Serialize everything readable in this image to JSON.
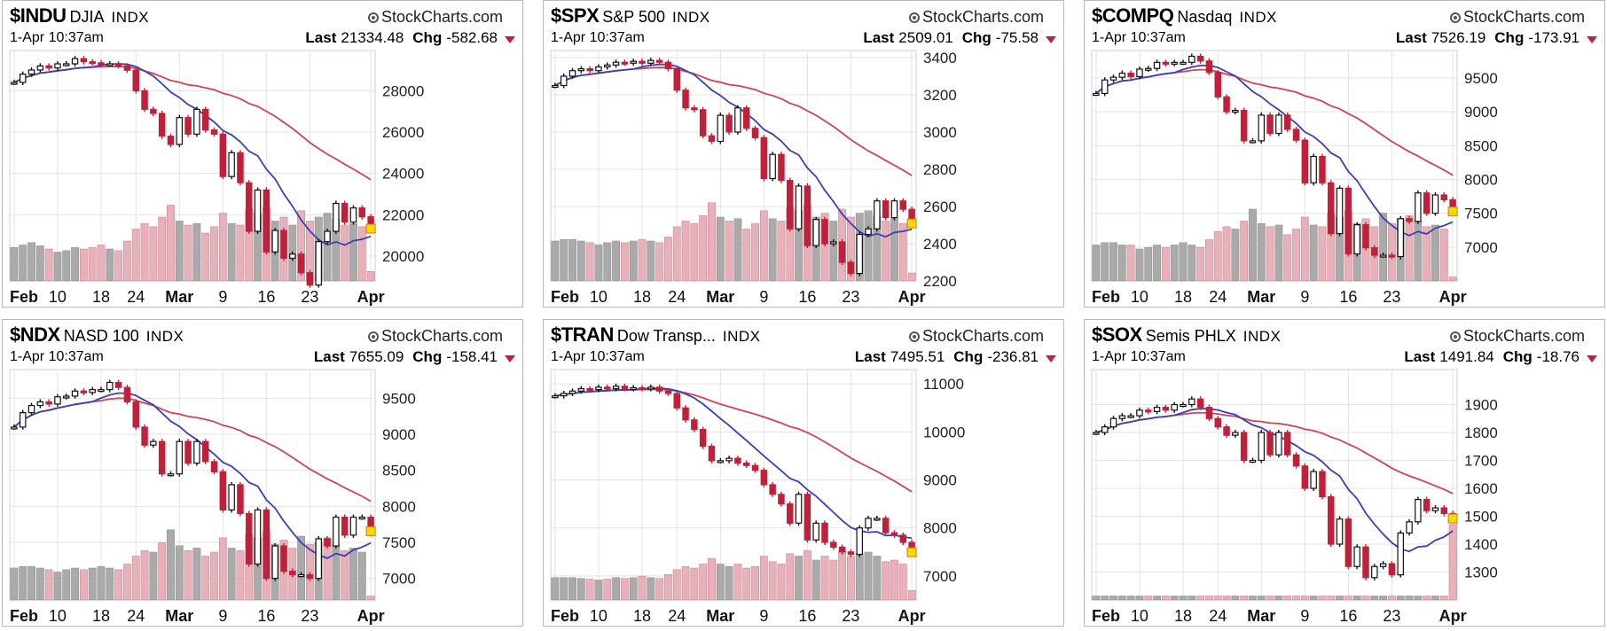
{
  "brand": "StockCharts.com",
  "colors": {
    "up_body": "#ffffff",
    "down_body": "#c0203a",
    "ma_short": "#3b3fb5",
    "ma_long": "#cc4455",
    "vol_down": "#e8b0b8",
    "vol_up": "#aaaaaa",
    "highlight": "#ffd800"
  },
  "panels": [
    {
      "ticker": "$INDU",
      "name": "DJIA",
      "index_label": "INDX",
      "datetime": "1-Apr 10:37am",
      "last_label": "Last",
      "last": "21334.48",
      "chg_label": "Chg",
      "chg": "-582.68"
    },
    {
      "ticker": "$SPX",
      "name": "S&P 500",
      "index_label": "INDX",
      "datetime": "1-Apr 10:37am",
      "last_label": "Last",
      "last": "2509.01",
      "chg_label": "Chg",
      "chg": "-75.58"
    },
    {
      "ticker": "$COMPQ",
      "name": "Nasdaq",
      "index_label": "INDX",
      "datetime": "1-Apr 10:37am",
      "last_label": "Last",
      "last": "7526.19",
      "chg_label": "Chg",
      "chg": "-173.91"
    },
    {
      "ticker": "$NDX",
      "name": "NASD 100",
      "index_label": "INDX",
      "datetime": "1-Apr 10:37am",
      "last_label": "Last",
      "last": "7655.09",
      "chg_label": "Chg",
      "chg": "-158.41"
    },
    {
      "ticker": "$TRAN",
      "name": "Dow Transp...",
      "index_label": "INDX",
      "datetime": "1-Apr 10:37am",
      "last_label": "Last",
      "last": "7495.51",
      "chg_label": "Chg",
      "chg": "-236.81"
    },
    {
      "ticker": "$SOX",
      "name": "Semis PHLX",
      "index_label": "INDX",
      "datetime": "1-Apr 10:37am",
      "last_label": "Last",
      "last": "1491.84",
      "chg_label": "Chg",
      "chg": "-18.76"
    }
  ],
  "chart_data": [
    {
      "type": "line",
      "title": "$INDU DJIA INDX",
      "ylim": [
        18800,
        29600
      ],
      "y_ticks": [
        20000,
        22000,
        24000,
        26000,
        28000
      ],
      "x_ticks": [
        "Feb",
        "10",
        "18",
        "24",
        "Mar",
        "9",
        "16",
        "23",
        "Apr"
      ],
      "x_ticks_bold": [
        "Feb",
        "Mar",
        "Apr"
      ],
      "x": [
        "Feb 3",
        "Feb 4",
        "Feb 5",
        "Feb 6",
        "Feb 7",
        "Feb 10",
        "Feb 11",
        "Feb 12",
        "Feb 13",
        "Feb 14",
        "Feb 18",
        "Feb 19",
        "Feb 20",
        "Feb 21",
        "Feb 24",
        "Feb 25",
        "Feb 26",
        "Feb 27",
        "Feb 28",
        "Mar 2",
        "Mar 3",
        "Mar 4",
        "Mar 5",
        "Mar 6",
        "Mar 9",
        "Mar 10",
        "Mar 11",
        "Mar 12",
        "Mar 13",
        "Mar 16",
        "Mar 17",
        "Mar 18",
        "Mar 19",
        "Mar 20",
        "Mar 23",
        "Mar 24",
        "Mar 25",
        "Mar 26",
        "Mar 27",
        "Mar 30",
        "Mar 31",
        "Apr 1"
      ],
      "series": [
        {
          "kind": "close",
          "values": [
            28400,
            28800,
            29000,
            29200,
            29100,
            29300,
            29300,
            29550,
            29400,
            29350,
            29300,
            29300,
            29200,
            28990,
            28000,
            27100,
            26900,
            25800,
            25400,
            26700,
            25900,
            27100,
            26100,
            25900,
            23850,
            25000,
            23550,
            21200,
            23200,
            20200,
            21240,
            19900,
            20100,
            19200,
            18600,
            20700,
            21200,
            22550,
            21650,
            22330,
            21900,
            21330
          ]
        },
        {
          "kind": "volume",
          "values": [
            0.42,
            0.45,
            0.48,
            0.44,
            0.4,
            0.36,
            0.38,
            0.42,
            0.4,
            0.42,
            0.45,
            0.4,
            0.38,
            0.5,
            0.65,
            0.72,
            0.68,
            0.8,
            0.95,
            0.75,
            0.7,
            0.72,
            0.6,
            0.68,
            0.85,
            0.72,
            0.7,
            0.9,
            0.85,
            0.92,
            0.75,
            0.8,
            0.7,
            0.88,
            0.75,
            0.8,
            0.85,
            0.78,
            0.7,
            0.72,
            0.68,
            0.12
          ]
        }
      ]
    },
    {
      "type": "line",
      "title": "$SPX S&P 500 INDX",
      "ylim": [
        2200,
        3400
      ],
      "y_ticks": [
        2200,
        2400,
        2600,
        2800,
        3000,
        3200,
        3400
      ],
      "x_ticks": [
        "Feb",
        "10",
        "18",
        "24",
        "Mar",
        "9",
        "16",
        "23",
        "Apr"
      ],
      "x_ticks_bold": [
        "Feb",
        "Mar",
        "Apr"
      ],
      "x": [
        "Feb 3",
        "Feb 4",
        "Feb 5",
        "Feb 6",
        "Feb 7",
        "Feb 10",
        "Feb 11",
        "Feb 12",
        "Feb 13",
        "Feb 14",
        "Feb 18",
        "Feb 19",
        "Feb 20",
        "Feb 21",
        "Feb 24",
        "Feb 25",
        "Feb 26",
        "Feb 27",
        "Feb 28",
        "Mar 2",
        "Mar 3",
        "Mar 4",
        "Mar 5",
        "Mar 6",
        "Mar 9",
        "Mar 10",
        "Mar 11",
        "Mar 12",
        "Mar 13",
        "Mar 16",
        "Mar 17",
        "Mar 18",
        "Mar 19",
        "Mar 20",
        "Mar 23",
        "Mar 24",
        "Mar 25",
        "Mar 26",
        "Mar 27",
        "Mar 30",
        "Mar 31",
        "Apr 1"
      ],
      "series": [
        {
          "kind": "close",
          "values": [
            3250,
            3300,
            3330,
            3340,
            3330,
            3350,
            3360,
            3375,
            3370,
            3380,
            3370,
            3385,
            3375,
            3340,
            3225,
            3130,
            3120,
            2980,
            2950,
            3090,
            3000,
            3130,
            3020,
            2970,
            2750,
            2880,
            2740,
            2480,
            2710,
            2390,
            2530,
            2400,
            2410,
            2300,
            2240,
            2450,
            2480,
            2630,
            2540,
            2630,
            2585,
            2509
          ]
        },
        {
          "kind": "volume",
          "values": [
            0.5,
            0.52,
            0.52,
            0.5,
            0.48,
            0.45,
            0.48,
            0.5,
            0.48,
            0.5,
            0.52,
            0.5,
            0.48,
            0.55,
            0.68,
            0.75,
            0.72,
            0.82,
            0.98,
            0.8,
            0.75,
            0.78,
            0.65,
            0.72,
            0.88,
            0.78,
            0.75,
            0.92,
            0.88,
            0.95,
            0.8,
            0.85,
            0.75,
            0.9,
            0.8,
            0.85,
            0.88,
            0.82,
            0.75,
            0.78,
            0.72,
            0.1
          ]
        }
      ]
    },
    {
      "type": "line",
      "title": "$COMPQ Nasdaq INDX",
      "ylim": [
        6500,
        9800
      ],
      "y_ticks": [
        7000,
        7500,
        8000,
        8500,
        9000,
        9500
      ],
      "x_ticks": [
        "Feb",
        "10",
        "18",
        "24",
        "Mar",
        "9",
        "16",
        "23",
        "Apr"
      ],
      "x_ticks_bold": [
        "Feb",
        "Mar",
        "Apr"
      ],
      "x": [
        "Feb 3",
        "Feb 4",
        "Feb 5",
        "Feb 6",
        "Feb 7",
        "Feb 10",
        "Feb 11",
        "Feb 12",
        "Feb 13",
        "Feb 14",
        "Feb 18",
        "Feb 19",
        "Feb 20",
        "Feb 21",
        "Feb 24",
        "Feb 25",
        "Feb 26",
        "Feb 27",
        "Feb 28",
        "Mar 2",
        "Mar 3",
        "Mar 4",
        "Mar 5",
        "Mar 6",
        "Mar 9",
        "Mar 10",
        "Mar 11",
        "Mar 12",
        "Mar 13",
        "Mar 16",
        "Mar 17",
        "Mar 18",
        "Mar 19",
        "Mar 20",
        "Mar 23",
        "Mar 24",
        "Mar 25",
        "Mar 26",
        "Mar 27",
        "Mar 30",
        "Mar 31",
        "Apr 1"
      ],
      "series": [
        {
          "kind": "close",
          "values": [
            9270,
            9470,
            9510,
            9570,
            9520,
            9630,
            9640,
            9730,
            9710,
            9730,
            9730,
            9820,
            9750,
            9580,
            9220,
            9000,
            9020,
            8570,
            8570,
            8950,
            8680,
            8950,
            8740,
            8580,
            7950,
            8340,
            7950,
            7200,
            7870,
            6900,
            7330,
            6990,
            6880,
            6880,
            6860,
            7420,
            7380,
            7800,
            7500,
            7770,
            7700,
            7526
          ]
        },
        {
          "kind": "volume",
          "values": [
            0.45,
            0.48,
            0.48,
            0.45,
            0.45,
            0.4,
            0.42,
            0.45,
            0.42,
            0.45,
            0.48,
            0.45,
            0.42,
            0.52,
            0.62,
            0.68,
            0.65,
            0.75,
            0.9,
            0.72,
            0.68,
            0.7,
            0.58,
            0.65,
            0.8,
            0.7,
            0.68,
            0.85,
            0.8,
            0.88,
            0.72,
            0.78,
            0.68,
            0.85,
            0.72,
            0.78,
            0.82,
            0.75,
            0.68,
            0.7,
            0.65,
            0.05
          ]
        }
      ]
    },
    {
      "type": "line",
      "title": "$NDX NASD 100 INDX",
      "ylim": [
        6700,
        9800
      ],
      "y_ticks": [
        7000,
        7500,
        8000,
        8500,
        9000,
        9500
      ],
      "x_ticks": [
        "Feb",
        "10",
        "18",
        "24",
        "Mar",
        "9",
        "16",
        "23",
        "Apr"
      ],
      "x_ticks_bold": [
        "Feb",
        "Mar",
        "Apr"
      ],
      "x": [
        "Feb 3",
        "Feb 4",
        "Feb 5",
        "Feb 6",
        "Feb 7",
        "Feb 10",
        "Feb 11",
        "Feb 12",
        "Feb 13",
        "Feb 14",
        "Feb 18",
        "Feb 19",
        "Feb 20",
        "Feb 21",
        "Feb 24",
        "Feb 25",
        "Feb 26",
        "Feb 27",
        "Feb 28",
        "Mar 2",
        "Mar 3",
        "Mar 4",
        "Mar 5",
        "Mar 6",
        "Mar 9",
        "Mar 10",
        "Mar 11",
        "Mar 12",
        "Mar 13",
        "Mar 16",
        "Mar 17",
        "Mar 18",
        "Mar 19",
        "Mar 20",
        "Mar 23",
        "Mar 24",
        "Mar 25",
        "Mar 26",
        "Mar 27",
        "Mar 30",
        "Mar 31",
        "Apr 1"
      ],
      "series": [
        {
          "kind": "close",
          "values": [
            9100,
            9300,
            9400,
            9450,
            9420,
            9520,
            9530,
            9600,
            9580,
            9620,
            9620,
            9720,
            9650,
            9450,
            9100,
            8850,
            8900,
            8450,
            8450,
            8900,
            8600,
            8900,
            8620,
            8480,
            7950,
            8300,
            7900,
            7200,
            7950,
            7000,
            7450,
            7100,
            7050,
            7050,
            7000,
            7550,
            7450,
            7850,
            7600,
            7850,
            7850,
            7655
          ]
        },
        {
          "kind": "volume",
          "values": [
            0.4,
            0.42,
            0.42,
            0.4,
            0.38,
            0.35,
            0.38,
            0.4,
            0.38,
            0.4,
            0.42,
            0.4,
            0.38,
            0.45,
            0.55,
            0.62,
            0.6,
            0.72,
            0.88,
            0.68,
            0.62,
            0.65,
            0.55,
            0.6,
            0.78,
            0.65,
            0.62,
            0.82,
            0.78,
            0.85,
            0.7,
            0.75,
            0.65,
            0.8,
            0.7,
            0.72,
            0.78,
            0.7,
            0.62,
            0.65,
            0.6,
            0.05
          ]
        }
      ]
    },
    {
      "type": "line",
      "title": "$TRAN Dow Transp... INDX",
      "ylim": [
        6500,
        11150
      ],
      "y_ticks": [
        7000,
        8000,
        9000,
        10000,
        11000
      ],
      "x_ticks": [
        "Feb",
        "10",
        "18",
        "24",
        "Mar",
        "9",
        "16",
        "23",
        "Apr"
      ],
      "x_ticks_bold": [
        "Feb",
        "Mar",
        "Apr"
      ],
      "x": [
        "Feb 3",
        "Feb 4",
        "Feb 5",
        "Feb 6",
        "Feb 7",
        "Feb 10",
        "Feb 11",
        "Feb 12",
        "Feb 13",
        "Feb 14",
        "Feb 18",
        "Feb 19",
        "Feb 20",
        "Feb 21",
        "Feb 24",
        "Feb 25",
        "Feb 26",
        "Feb 27",
        "Feb 28",
        "Mar 2",
        "Mar 3",
        "Mar 4",
        "Mar 5",
        "Mar 6",
        "Mar 9",
        "Mar 10",
        "Mar 11",
        "Mar 12",
        "Mar 13",
        "Mar 16",
        "Mar 17",
        "Mar 18",
        "Mar 19",
        "Mar 20",
        "Mar 23",
        "Mar 24",
        "Mar 25",
        "Mar 26",
        "Mar 27",
        "Mar 30",
        "Mar 31",
        "Apr 1"
      ],
      "series": [
        {
          "kind": "close",
          "values": [
            10750,
            10800,
            10850,
            10900,
            10880,
            10930,
            10900,
            10950,
            10900,
            10920,
            10900,
            10930,
            10850,
            10800,
            10500,
            10250,
            10050,
            9700,
            9400,
            9400,
            9450,
            9350,
            9300,
            9200,
            8900,
            8700,
            8500,
            8100,
            8700,
            7750,
            8100,
            7700,
            7600,
            7500,
            7450,
            8000,
            8200,
            8200,
            7900,
            7850,
            7700,
            7495
          ]
        },
        {
          "kind": "volume",
          "values": [
            0.28,
            0.28,
            0.28,
            0.27,
            0.26,
            0.25,
            0.26,
            0.28,
            0.27,
            0.28,
            0.3,
            0.28,
            0.27,
            0.32,
            0.38,
            0.42,
            0.4,
            0.45,
            0.52,
            0.45,
            0.42,
            0.45,
            0.4,
            0.42,
            0.55,
            0.48,
            0.45,
            0.58,
            0.55,
            0.62,
            0.5,
            0.55,
            0.5,
            0.62,
            0.55,
            0.58,
            0.6,
            0.55,
            0.48,
            0.5,
            0.45,
            0.12
          ]
        }
      ]
    },
    {
      "type": "line",
      "title": "$SOX Semis PHLX INDX",
      "ylim": [
        1200,
        2000
      ],
      "y_ticks": [
        1300,
        1400,
        1500,
        1600,
        1700,
        1800,
        1900
      ],
      "x_ticks": [
        "Feb",
        "10",
        "18",
        "24",
        "Mar",
        "9",
        "16",
        "23",
        "Apr"
      ],
      "x_ticks_bold": [
        "Feb",
        "Mar",
        "Apr"
      ],
      "x": [
        "Feb 3",
        "Feb 4",
        "Feb 5",
        "Feb 6",
        "Feb 7",
        "Feb 10",
        "Feb 11",
        "Feb 12",
        "Feb 13",
        "Feb 14",
        "Feb 18",
        "Feb 19",
        "Feb 20",
        "Feb 21",
        "Feb 24",
        "Feb 25",
        "Feb 26",
        "Feb 27",
        "Feb 28",
        "Mar 2",
        "Mar 3",
        "Mar 4",
        "Mar 5",
        "Mar 6",
        "Mar 9",
        "Mar 10",
        "Mar 11",
        "Mar 12",
        "Mar 13",
        "Mar 16",
        "Mar 17",
        "Mar 18",
        "Mar 19",
        "Mar 20",
        "Mar 23",
        "Mar 24",
        "Mar 25",
        "Mar 26",
        "Mar 27",
        "Mar 30",
        "Mar 31",
        "Apr 1"
      ],
      "series": [
        {
          "kind": "close",
          "values": [
            1800,
            1820,
            1850,
            1860,
            1860,
            1880,
            1875,
            1890,
            1880,
            1900,
            1900,
            1920,
            1890,
            1850,
            1820,
            1790,
            1800,
            1700,
            1700,
            1800,
            1720,
            1800,
            1720,
            1680,
            1600,
            1660,
            1570,
            1400,
            1490,
            1320,
            1390,
            1280,
            1320,
            1330,
            1290,
            1440,
            1480,
            1560,
            1520,
            1530,
            1510,
            1492
          ]
        },
        {
          "kind": "volume",
          "values": [
            0.05,
            0.05,
            0.05,
            0.05,
            0.05,
            0.05,
            0.05,
            0.05,
            0.05,
            0.05,
            0.05,
            0.05,
            0.05,
            0.05,
            0.05,
            0.05,
            0.05,
            0.05,
            0.05,
            0.05,
            0.05,
            0.05,
            0.05,
            0.05,
            0.05,
            0.05,
            0.05,
            0.05,
            0.05,
            0.05,
            0.05,
            0.05,
            0.05,
            0.05,
            0.05,
            0.05,
            0.05,
            0.05,
            0.05,
            0.05,
            0.05,
            0.95
          ]
        }
      ]
    }
  ]
}
